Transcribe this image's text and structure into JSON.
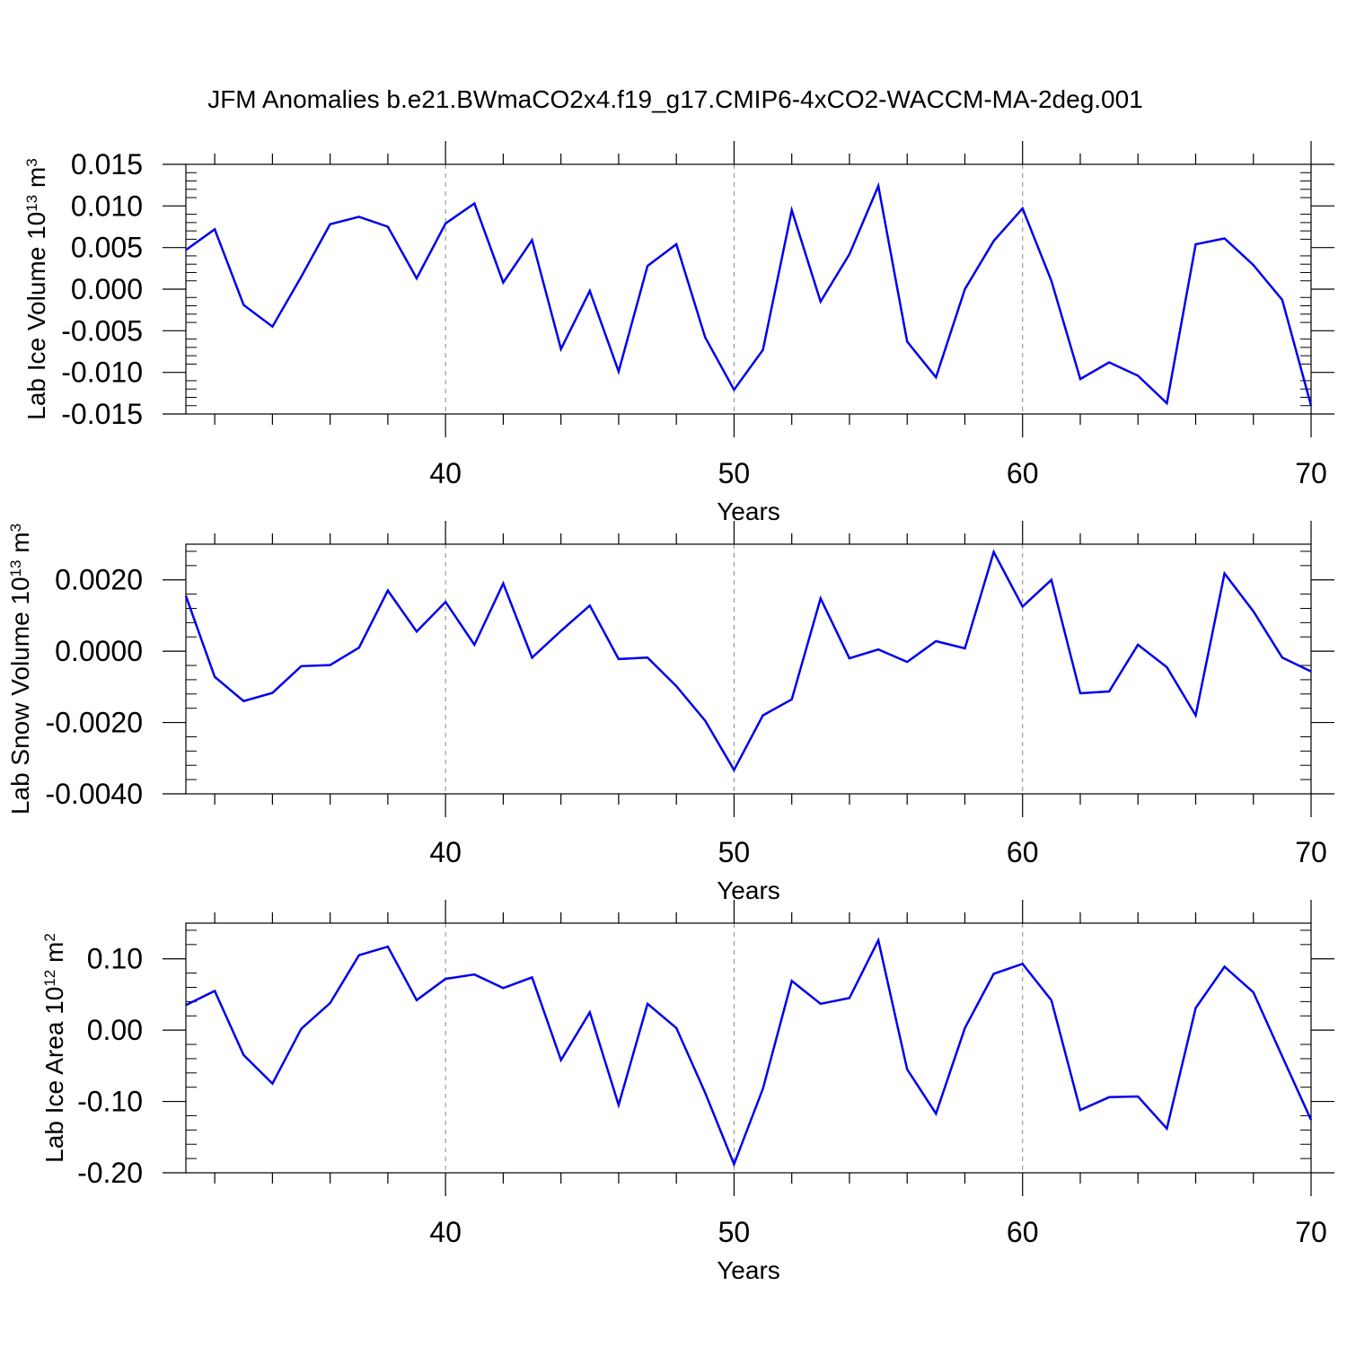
{
  "title": "JFM Anomalies b.e21.BWmaCO2x4.f19_g17.CMIP6-4xCO2-WACCM-MA-2deg.001",
  "colors": {
    "series": "#0000ee",
    "axis": "#000000",
    "grid": "#888888"
  },
  "chart_data": [
    {
      "type": "line",
      "title": "JFM Anomalies b.e21.BWmaCO2x4.f19_g17.CMIP6-4xCO2-WACCM-MA-2deg.001",
      "xlabel": "Years",
      "ylabel": "Lab Ice Volume",
      "ylabel_unit": {
        "base": "10",
        "exp": "13",
        "unit": "m",
        "unit_exp": "3"
      },
      "xlim": [
        31,
        70
      ],
      "ylim": [
        -0.015,
        0.015
      ],
      "xticks": [
        40,
        50,
        60,
        70
      ],
      "yticks": [
        -0.015,
        -0.01,
        -0.005,
        0,
        0.005,
        0.01,
        0.015
      ],
      "ytick_labels": [
        "-0.015",
        "-0.010",
        "-0.005",
        "0.000",
        "0.005",
        "0.010",
        "0.015"
      ],
      "grid": "vertical dashed at x major ticks",
      "x": [
        31,
        32,
        33,
        34,
        35,
        36,
        37,
        38,
        39,
        40,
        41,
        42,
        43,
        44,
        45,
        46,
        47,
        48,
        49,
        50,
        51,
        52,
        53,
        54,
        55,
        56,
        57,
        58,
        59,
        60,
        61,
        62,
        63,
        64,
        65,
        66,
        67,
        68,
        69,
        70
      ],
      "series": [
        {
          "values": [
            0.0047,
            0.0072,
            -0.0019,
            -0.0045,
            0.0015,
            0.0078,
            0.0087,
            0.0075,
            0.0013,
            0.0079,
            0.0103,
            0.0008,
            0.0059,
            -0.0072,
            -0.0002,
            -0.0099,
            0.0028,
            0.0054,
            -0.0058,
            -0.0121,
            -0.0073,
            0.0095,
            -0.0015,
            0.0042,
            0.0124,
            -0.0063,
            -0.0106,
            0.0,
            0.0058,
            0.0097,
            0.001,
            -0.0108,
            -0.0088,
            -0.0104,
            -0.0137,
            0.0054,
            0.0061,
            0.0029,
            -0.0013,
            -0.014
          ]
        }
      ]
    },
    {
      "type": "line",
      "xlabel": "Years",
      "ylabel": "Lab Snow Volume",
      "ylabel_unit": {
        "base": "10",
        "exp": "13",
        "unit": "m",
        "unit_exp": "3"
      },
      "xlim": [
        31,
        70
      ],
      "ylim": [
        -0.004,
        0.003
      ],
      "xticks": [
        40,
        50,
        60,
        70
      ],
      "yticks": [
        -0.004,
        -0.002,
        0,
        0.002
      ],
      "ytick_labels": [
        "-0.0040",
        "-0.0020",
        "0.0000",
        "0.0020"
      ],
      "grid": "vertical dashed at x major ticks",
      "x": [
        31,
        32,
        33,
        34,
        35,
        36,
        37,
        38,
        39,
        40,
        41,
        42,
        43,
        44,
        45,
        46,
        47,
        48,
        49,
        50,
        51,
        52,
        53,
        54,
        55,
        56,
        57,
        58,
        59,
        60,
        61,
        62,
        63,
        64,
        65,
        66,
        67,
        68,
        69,
        70
      ],
      "series": [
        {
          "values": [
            0.00155,
            -0.00072,
            -0.0014,
            -0.00117,
            -0.00042,
            -0.00039,
            0.0001,
            0.0017,
            0.00055,
            0.00138,
            0.00018,
            0.0019,
            -0.00018,
            0.00057,
            0.00128,
            -0.00022,
            -0.00018,
            -0.00098,
            -0.00195,
            -0.00333,
            -0.0018,
            -0.00135,
            0.00148,
            -0.0002,
            5e-05,
            -0.0003,
            0.00028,
            8e-05,
            0.00278,
            0.00125,
            0.002,
            -0.00118,
            -0.00113,
            0.00018,
            -0.00045,
            -0.0018,
            0.00218,
            0.00112,
            -0.00018,
            -0.00057
          ]
        }
      ]
    },
    {
      "type": "line",
      "xlabel": "Years",
      "ylabel": "Lab Ice Area",
      "ylabel_unit": {
        "base": "10",
        "exp": "12",
        "unit": "m",
        "unit_exp": "2"
      },
      "xlim": [
        31,
        70
      ],
      "ylim": [
        -0.2,
        0.15
      ],
      "xticks": [
        40,
        50,
        60,
        70
      ],
      "yticks": [
        -0.2,
        -0.1,
        0,
        0.1
      ],
      "ytick_labels": [
        "-0.20",
        "-0.10",
        "0.00",
        "0.10"
      ],
      "grid": "vertical dashed at x major ticks",
      "x": [
        31,
        32,
        33,
        34,
        35,
        36,
        37,
        38,
        39,
        40,
        41,
        42,
        43,
        44,
        45,
        46,
        47,
        48,
        49,
        50,
        51,
        52,
        53,
        54,
        55,
        56,
        57,
        58,
        59,
        60,
        61,
        62,
        63,
        64,
        65,
        66,
        67,
        68,
        69,
        70
      ],
      "series": [
        {
          "values": [
            0.035,
            0.055,
            -0.035,
            -0.075,
            0.002,
            0.038,
            0.105,
            0.117,
            0.042,
            0.072,
            0.078,
            0.059,
            0.074,
            -0.042,
            0.025,
            -0.105,
            0.037,
            0.003,
            -0.088,
            -0.188,
            -0.082,
            0.069,
            0.037,
            0.045,
            0.126,
            -0.055,
            -0.117,
            0.003,
            0.079,
            0.093,
            0.042,
            -0.112,
            -0.094,
            -0.093,
            -0.138,
            0.031,
            0.089,
            0.053,
            -0.037,
            -0.126
          ]
        }
      ]
    }
  ]
}
